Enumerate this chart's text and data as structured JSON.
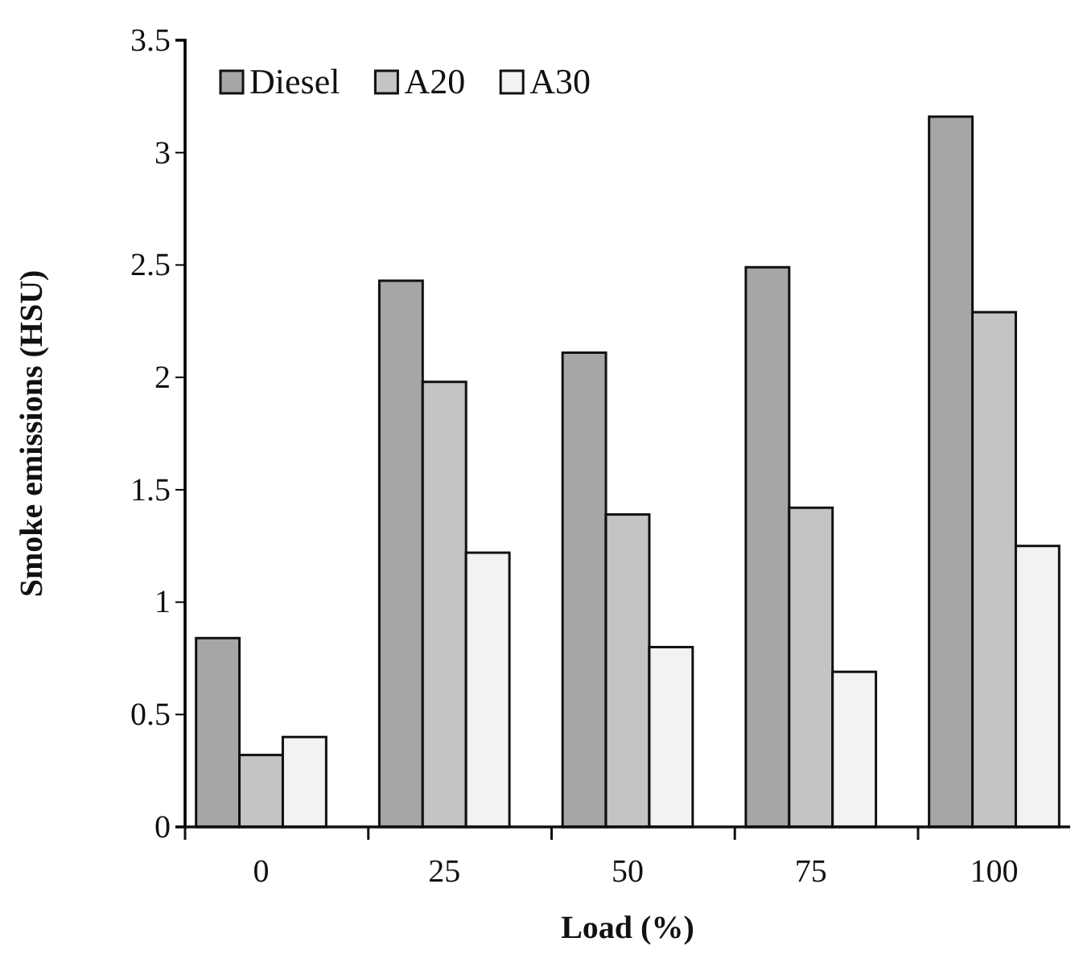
{
  "chart_data": {
    "type": "bar",
    "xlabel": "Load (%)",
    "ylabel": "Smoke emissions (HSU)",
    "categories": [
      "0",
      "25",
      "50",
      "75",
      "100"
    ],
    "series": [
      {
        "name": "Diesel",
        "color": "#a6a6a6",
        "values": [
          0.84,
          2.43,
          2.11,
          2.49,
          3.16
        ]
      },
      {
        "name": "A20",
        "color": "#c4c4c4",
        "values": [
          0.32,
          1.98,
          1.39,
          1.42,
          2.29
        ]
      },
      {
        "name": "A30",
        "color": "#f2f2f2",
        "values": [
          0.4,
          1.22,
          0.8,
          0.69,
          1.25
        ]
      }
    ],
    "ylim": [
      0,
      3.5
    ],
    "yticks": [
      0,
      0.5,
      1,
      1.5,
      2,
      2.5,
      3,
      3.5
    ],
    "legend": "top left",
    "grid": false
  }
}
